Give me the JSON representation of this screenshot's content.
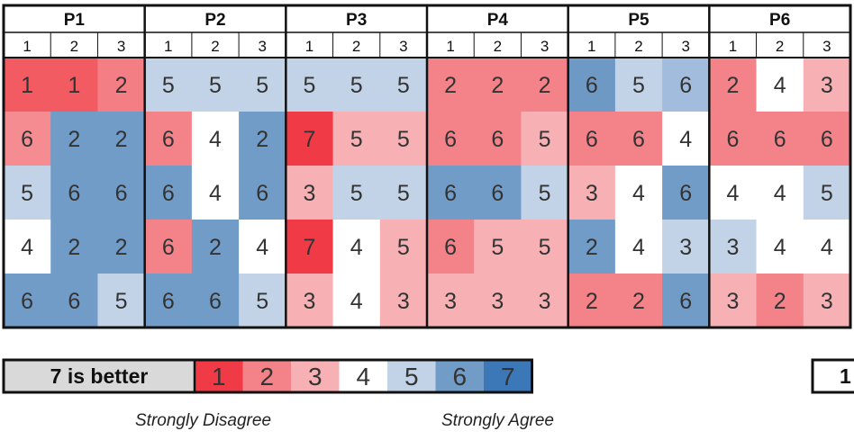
{
  "chart_data": {
    "type": "heatmap",
    "groups": [
      "P1",
      "P2",
      "P3",
      "P4",
      "P5",
      "P6"
    ],
    "columns": [
      "1",
      "2",
      "3"
    ],
    "rows": [
      [
        1,
        1,
        2,
        5,
        5,
        5,
        5,
        5,
        5,
        2,
        2,
        2,
        6,
        5,
        6,
        2,
        4,
        3
      ],
      [
        6,
        2,
        2,
        6,
        4,
        2,
        7,
        5,
        5,
        6,
        6,
        5,
        6,
        6,
        4,
        6,
        6,
        6
      ],
      [
        5,
        6,
        6,
        6,
        4,
        6,
        3,
        5,
        5,
        6,
        6,
        5,
        3,
        4,
        6,
        4,
        4,
        5
      ],
      [
        4,
        2,
        2,
        6,
        2,
        4,
        7,
        4,
        5,
        6,
        5,
        5,
        2,
        4,
        3,
        3,
        4,
        4
      ],
      [
        6,
        6,
        5,
        6,
        6,
        5,
        3,
        4,
        3,
        3,
        3,
        3,
        2,
        2,
        6,
        3,
        2,
        3
      ]
    ],
    "cell_colors": [
      [
        "#f35b62",
        "#f35b62",
        "#f37f85",
        "#c2d3e7",
        "#c2d3e7",
        "#c2d3e7",
        "#c2d3e7",
        "#c2d3e7",
        "#c2d3e7",
        "#f48289",
        "#f48289",
        "#f48289",
        "#6f99c5",
        "#c2d3e7",
        "#a1bcdc",
        "#f48289",
        "#ffffff",
        "#f7b1b5"
      ],
      [
        "#f58c92",
        "#719cc8",
        "#719cc8",
        "#f48289",
        "#ffffff",
        "#719cc8",
        "#f03b47",
        "#f7b1b5",
        "#f7b1b5",
        "#f48289",
        "#f48289",
        "#f7b1b5",
        "#f48289",
        "#f48289",
        "#ffffff",
        "#f48289",
        "#f48289",
        "#f48289"
      ],
      [
        "#c2d3e7",
        "#719cc8",
        "#719cc8",
        "#719cc8",
        "#ffffff",
        "#719cc8",
        "#f7b1b5",
        "#c2d3e7",
        "#c2d3e7",
        "#719cc8",
        "#719cc8",
        "#c2d3e7",
        "#f7b1b5",
        "#ffffff",
        "#719cc8",
        "#ffffff",
        "#ffffff",
        "#c2d3e7"
      ],
      [
        "#ffffff",
        "#719cc8",
        "#719cc8",
        "#f48289",
        "#719cc8",
        "#ffffff",
        "#f03b47",
        "#ffffff",
        "#f7b1b5",
        "#f48289",
        "#f7b1b5",
        "#f7b1b5",
        "#719cc8",
        "#ffffff",
        "#c2d3e7",
        "#c2d3e7",
        "#ffffff",
        "#ffffff"
      ],
      [
        "#719cc8",
        "#719cc8",
        "#c2d3e7",
        "#719cc8",
        "#719cc8",
        "#c2d3e7",
        "#f7b1b5",
        "#ffffff",
        "#f7b1b5",
        "#f7b1b5",
        "#f7b1b5",
        "#f7b1b5",
        "#f48289",
        "#f48289",
        "#719cc8",
        "#f7b1b5",
        "#f48289",
        "#f7b1b5"
      ]
    ],
    "legend": {
      "label": "7 is better",
      "values": [
        1,
        2,
        3,
        4,
        5,
        6,
        7
      ],
      "colors": [
        "#f03b47",
        "#f48289",
        "#f7b1b5",
        "#ffffff",
        "#c2d3e7",
        "#719cc8",
        "#3c78b8"
      ],
      "left_note": "Strongly Disagree",
      "right_note": "Strongly Agree"
    },
    "partial_legend_value": "1"
  }
}
